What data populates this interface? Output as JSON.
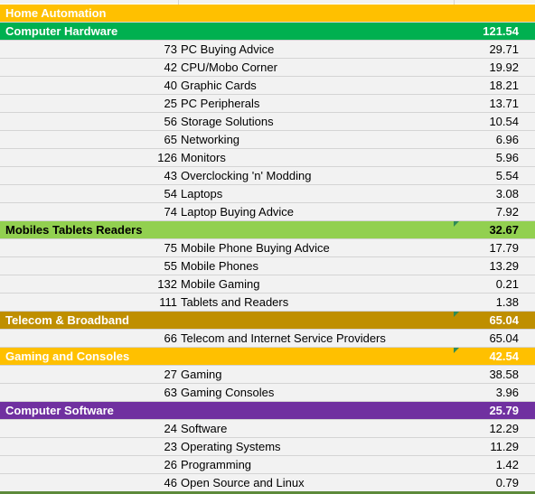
{
  "sections": [
    {
      "name": "Home Automation",
      "value": "",
      "color": "#ffc000",
      "text_color": "#ffffff",
      "has_marker": false,
      "items": []
    },
    {
      "name": "Computer Hardware",
      "value": "121.54",
      "color": "#00b050",
      "text_color": "#ffffff",
      "has_marker": false,
      "items": [
        {
          "id": "73",
          "name": "PC Buying Advice",
          "value": "29.71"
        },
        {
          "id": "42",
          "name": "CPU/Mobo Corner",
          "value": "19.92"
        },
        {
          "id": "40",
          "name": "Graphic Cards",
          "value": "18.21"
        },
        {
          "id": "25",
          "name": "PC Peripherals",
          "value": "13.71"
        },
        {
          "id": "56",
          "name": "Storage Solutions",
          "value": "10.54"
        },
        {
          "id": "65",
          "name": "Networking",
          "value": "6.96"
        },
        {
          "id": "126",
          "name": "Monitors",
          "value": "5.96"
        },
        {
          "id": "43",
          "name": "Overclocking 'n' Modding",
          "value": "5.54"
        },
        {
          "id": "54",
          "name": "Laptops",
          "value": "3.08"
        },
        {
          "id": "74",
          "name": "Laptop Buying Advice",
          "value": "7.92"
        }
      ]
    },
    {
      "name": "Mobiles Tablets Readers",
      "value": "32.67",
      "color": "#92d050",
      "text_color": "#000000",
      "has_marker": true,
      "items": [
        {
          "id": "75",
          "name": "Mobile Phone Buying Advice",
          "value": "17.79"
        },
        {
          "id": "55",
          "name": "Mobile Phones",
          "value": "13.29"
        },
        {
          "id": "132",
          "name": "Mobile Gaming",
          "value": "0.21"
        },
        {
          "id": "111",
          "name": "Tablets and Readers",
          "value": "1.38"
        }
      ]
    },
    {
      "name": "Telecom & Broadband",
      "value": "65.04",
      "color": "#bf8f00",
      "text_color": "#ffffff",
      "has_marker": true,
      "items": [
        {
          "id": "66",
          "name": "Telecom and Internet Service Providers",
          "value": "65.04"
        }
      ]
    },
    {
      "name": "Gaming and Consoles",
      "value": "42.54",
      "color": "#ffc000",
      "text_color": "#ffffff",
      "has_marker": true,
      "items": [
        {
          "id": "27",
          "name": "Gaming",
          "value": "38.58"
        },
        {
          "id": "63",
          "name": "Gaming Consoles",
          "value": "3.96"
        }
      ]
    },
    {
      "name": "Computer Software",
      "value": "25.79",
      "color": "#7030a0",
      "text_color": "#ffffff",
      "has_marker": false,
      "items": [
        {
          "id": "24",
          "name": "Software",
          "value": "12.29"
        },
        {
          "id": "23",
          "name": "Operating Systems",
          "value": "11.29"
        },
        {
          "id": "26",
          "name": "Programming",
          "value": "1.42"
        },
        {
          "id": "46",
          "name": "Open Source and Linux",
          "value": "0.79"
        }
      ]
    }
  ]
}
